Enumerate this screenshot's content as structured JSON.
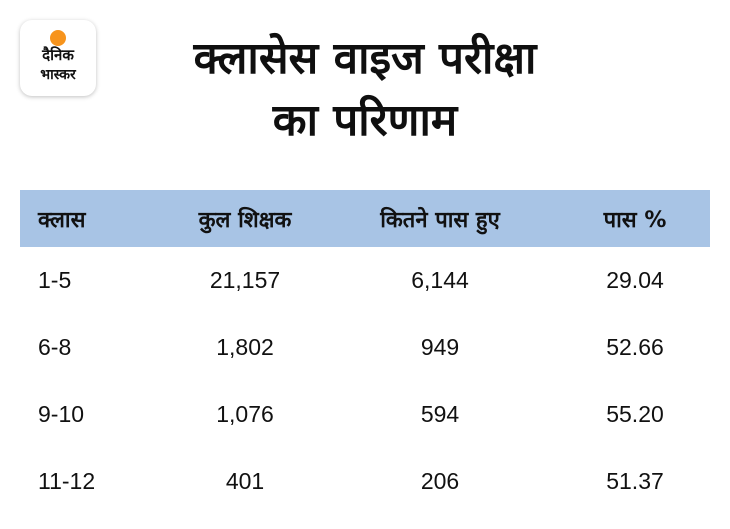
{
  "logo": {
    "line1": "दैनिक",
    "line2": "भास्कर",
    "sun_color": "#f7941d"
  },
  "title": {
    "line1": "क्लासेस वाइज परीक्षा",
    "line2": "का परिणाम"
  },
  "table": {
    "header_color": "#a8c4e5",
    "columns": [
      "क्लास",
      "कुल शिक्षक",
      "कितने पास हुए",
      "पास %"
    ],
    "rows": [
      [
        "1-5",
        "21,157",
        "6,144",
        "29.04"
      ],
      [
        "6-8",
        "1,802",
        "949",
        "52.66"
      ],
      [
        "9-10",
        "1,076",
        "594",
        "55.20"
      ],
      [
        "11-12",
        "401",
        "206",
        "51.37"
      ]
    ]
  }
}
